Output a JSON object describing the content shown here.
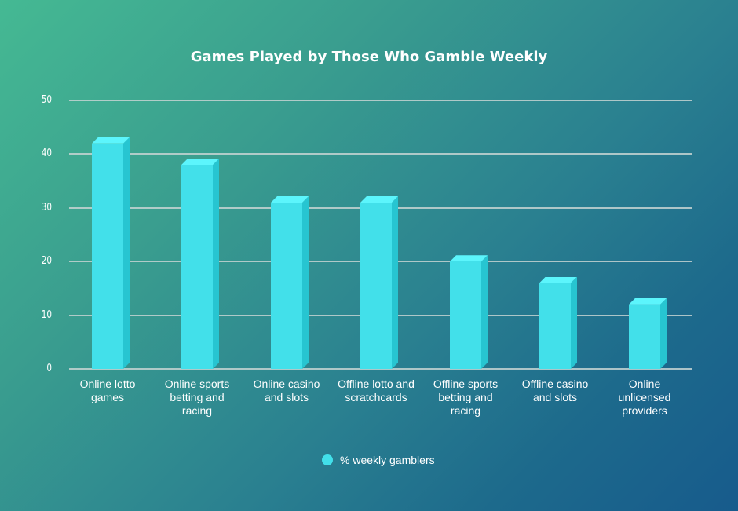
{
  "chart_data": {
    "type": "bar",
    "title": "Games Played by Those Who Gamble Weekly",
    "xlabel": "",
    "ylabel": "",
    "ylim": [
      0,
      50
    ],
    "yticks": [
      0,
      10,
      20,
      30,
      40,
      50
    ],
    "grid": true,
    "legend_position": "bottom",
    "categories": [
      "Online lotto games",
      "Online sports betting and racing",
      "Online casino and slots",
      "Offline lotto and scratchcards",
      "Offline sports betting and racing",
      "Offline casino and slots",
      "Online unlicensed providers"
    ],
    "series": [
      {
        "name": "% weekly gamblers",
        "color": "#42e0ea",
        "values": [
          42,
          38,
          31,
          31,
          20,
          16,
          12
        ]
      }
    ]
  },
  "labels": {
    "title": "Games Played by Those Who Gamble Weekly",
    "yticks": [
      "0",
      "10",
      "20",
      "30",
      "40",
      "50"
    ],
    "categories": [
      [
        "Online lotto",
        "games"
      ],
      [
        "Online sports",
        "betting and",
        "racing"
      ],
      [
        "Online casino",
        "and slots"
      ],
      [
        "Offline lotto and",
        "scratchcards"
      ],
      [
        "Offline sports",
        "betting and",
        "racing"
      ],
      [
        "Offline casino",
        "and slots"
      ],
      [
        "Online",
        "unlicensed",
        "providers"
      ]
    ],
    "legend": "% weekly gamblers"
  }
}
